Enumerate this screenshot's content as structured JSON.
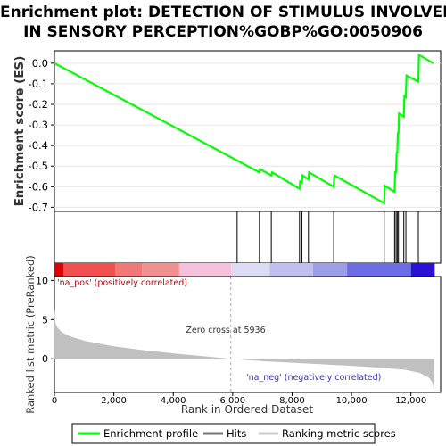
{
  "title_line1": "Enrichment plot: DETECTION OF STIMULUS INVOLVED",
  "title_line2": "IN SENSORY PERCEPTION%GOBP%GO:0050906",
  "colors": {
    "es_line": "#00ff00",
    "hits": "#000000",
    "metric_fill": "#c0c0c0",
    "pos_label": "#cc0000",
    "neg_label": "#3333cc",
    "zero_line": "#aaaaaa"
  },
  "chart_data": {
    "type": "line",
    "x_axis": {
      "label": "Rank in Ordered Dataset",
      "range": [
        0,
        13000
      ],
      "ticks": [
        0,
        2000,
        4000,
        6000,
        8000,
        10000,
        12000
      ],
      "tick_labels": [
        "0",
        "2,000",
        "4,000",
        "6,000",
        "8,000",
        "10,000",
        "12,000"
      ]
    },
    "enrichment_panel": {
      "ylabel": "Enrichment score (ES)",
      "ylim": [
        -0.72,
        0.06
      ],
      "yticks": [
        0.0,
        -0.1,
        -0.2,
        -0.3,
        -0.4,
        -0.5,
        -0.6,
        -0.7
      ],
      "ytick_labels": [
        "0.0",
        "-0.1",
        "-0.2",
        "-0.3",
        "-0.4",
        "-0.5",
        "-0.6",
        "-0.7"
      ],
      "grid": true,
      "es_profile": [
        [
          0,
          0.0
        ],
        [
          6900,
          -0.53
        ],
        [
          6920,
          -0.515
        ],
        [
          7300,
          -0.545
        ],
        [
          7330,
          -0.53
        ],
        [
          8250,
          -0.61
        ],
        [
          8270,
          -0.575
        ],
        [
          8330,
          -0.58
        ],
        [
          8350,
          -0.545
        ],
        [
          8550,
          -0.565
        ],
        [
          8570,
          -0.53
        ],
        [
          9400,
          -0.6
        ],
        [
          9420,
          -0.545
        ],
        [
          11100,
          -0.68
        ],
        [
          11120,
          -0.595
        ],
        [
          11450,
          -0.625
        ],
        [
          11470,
          -0.53
        ],
        [
          11500,
          -0.53
        ],
        [
          11520,
          -0.435
        ],
        [
          11540,
          -0.435
        ],
        [
          11560,
          -0.34
        ],
        [
          11580,
          -0.34
        ],
        [
          11600,
          -0.245
        ],
        [
          11760,
          -0.26
        ],
        [
          11780,
          -0.16
        ],
        [
          11830,
          -0.165
        ],
        [
          11850,
          -0.06
        ],
        [
          12250,
          -0.09
        ],
        [
          12270,
          0.04
        ],
        [
          12750,
          0.0
        ]
      ]
    },
    "hits": [
      6150,
      6900,
      7300,
      8250,
      8330,
      8550,
      9400,
      11100,
      11450,
      11500,
      11540,
      11580,
      11760,
      11830,
      12250
    ],
    "color_bar": [
      {
        "from": 0,
        "to": 300,
        "color": "#dd0000"
      },
      {
        "from": 300,
        "to": 2050,
        "color": "#f05050"
      },
      {
        "from": 2050,
        "to": 2950,
        "color": "#f07878"
      },
      {
        "from": 2950,
        "to": 4200,
        "color": "#f09090"
      },
      {
        "from": 4200,
        "to": 5950,
        "color": "#f7c0dd"
      },
      {
        "from": 5950,
        "to": 7250,
        "color": "#dcdcf5"
      },
      {
        "from": 7250,
        "to": 8700,
        "color": "#c0c0f0"
      },
      {
        "from": 8700,
        "to": 9850,
        "color": "#9d9dea"
      },
      {
        "from": 9850,
        "to": 12000,
        "color": "#6c6ce4"
      },
      {
        "from": 12000,
        "to": 12800,
        "color": "#2a10d8"
      }
    ],
    "metric_panel": {
      "ylabel": "Ranked list metric (PreRanked)",
      "ylim": [
        -4.3,
        10.5
      ],
      "yticks": [
        10,
        5,
        0
      ],
      "ytick_labels": [
        "10",
        "5",
        "0"
      ],
      "zero_cross": 5936,
      "zero_cross_label": "Zero cross at 5936",
      "pos_label": "'na_pos' (positively correlated)",
      "neg_label": "'na_neg' (negatively correlated)",
      "metric_profile": [
        [
          0,
          6.5
        ],
        [
          30,
          4.6
        ],
        [
          100,
          4.0
        ],
        [
          250,
          3.4
        ],
        [
          500,
          2.9
        ],
        [
          1000,
          2.3
        ],
        [
          2000,
          1.6
        ],
        [
          3000,
          1.1
        ],
        [
          4000,
          0.7
        ],
        [
          5000,
          0.35
        ],
        [
          5936,
          0.0
        ],
        [
          7000,
          -0.3
        ],
        [
          8000,
          -0.5
        ],
        [
          9000,
          -0.7
        ],
        [
          10000,
          -0.9
        ],
        [
          11000,
          -1.15
        ],
        [
          11800,
          -1.4
        ],
        [
          12300,
          -1.8
        ],
        [
          12600,
          -2.4
        ],
        [
          12720,
          -3.0
        ],
        [
          12780,
          -4.0
        ]
      ]
    },
    "legend": {
      "placement": "bottom",
      "entries": [
        "Enrichment profile",
        "Hits",
        "Ranking metric scores"
      ]
    }
  }
}
